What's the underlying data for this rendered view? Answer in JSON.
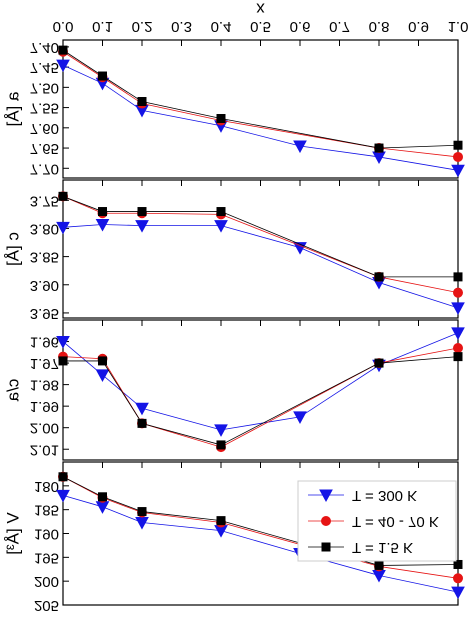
{
  "chart_data": [
    {
      "type": "line",
      "ylabel": "V [Å³]",
      "ylim": [
        175,
        205
      ],
      "yticks": [
        180,
        185,
        190,
        195,
        200,
        205
      ],
      "xlim": [
        0,
        1
      ],
      "legend": "lower right",
      "series": [
        {
          "name": "T = 300 K",
          "color": "#1414e6",
          "marker": "triangle",
          "x": [
            0,
            0.1,
            0.2,
            0.4,
            0.6,
            0.8,
            1.0
          ],
          "values": [
            182,
            184.4,
            187.7,
            189.4,
            194.2,
            198.8,
            202.3
          ]
        },
        {
          "name": "T = 40 - 70 K",
          "color": "#e61414",
          "marker": "circle",
          "x": [
            0,
            0.1,
            0.2,
            0.4,
            0.8,
            1.0
          ],
          "values": [
            178.1,
            182.5,
            185.6,
            187.7,
            196.9,
            199.4
          ]
        },
        {
          "name": "T = 1.5 K",
          "color": "#000000",
          "marker": "square",
          "x": [
            0,
            0.1,
            0.2,
            0.4,
            0.8,
            1.0
          ],
          "values": [
            178.1,
            182.3,
            185.4,
            187.3,
            196.7,
            196.5
          ]
        }
      ]
    },
    {
      "type": "line",
      "ylabel": "c/a",
      "ylim": [
        1.95,
        2.015
      ],
      "yticks": [
        1.96,
        1.97,
        1.98,
        1.99,
        {
          "value": 2.0,
          "label": "2.00"
        },
        2.01
      ],
      "xlim": [
        0,
        1
      ],
      "series": [
        {
          "color": "#1414e6",
          "marker": "triangle",
          "x": [
            0,
            0.1,
            0.2,
            0.4,
            0.6,
            0.8,
            1.0
          ],
          "values": [
            1.96,
            1.9755,
            1.991,
            2.001,
            1.995,
            1.971,
            1.956
          ]
        },
        {
          "color": "#e61414",
          "marker": "circle",
          "x": [
            0,
            0.1,
            0.2,
            0.4,
            0.8,
            1.0
          ],
          "values": [
            1.967,
            1.968,
            1.998,
            2.009,
            1.97,
            1.963
          ]
        },
        {
          "color": "#000000",
          "marker": "square",
          "x": [
            0,
            0.1,
            0.2,
            0.4,
            0.8,
            1.0
          ],
          "values": [
            1.969,
            1.969,
            1.998,
            2.008,
            1.97,
            1.967
          ]
        }
      ]
    },
    {
      "type": "line",
      "ylabel": "c [Å]",
      "ylim": [
        3.714,
        3.959
      ],
      "yticks": [
        3.75,
        {
          "value": 3.8,
          "label": "3.80"
        },
        3.85,
        {
          "value": 3.9,
          "label": "3.90"
        },
        3.95
      ],
      "xlim": [
        0,
        1
      ],
      "series": [
        {
          "color": "#1414e6",
          "marker": "triangle",
          "x": [
            0,
            0.1,
            0.2,
            0.4,
            0.6,
            0.8,
            1.0
          ],
          "values": [
            3.798,
            3.793,
            3.795,
            3.795,
            3.834,
            3.896,
            3.941
          ]
        },
        {
          "color": "#e61414",
          "marker": "circle",
          "x": [
            0,
            0.1,
            0.2,
            0.4,
            0.8,
            1.0
          ],
          "values": [
            3.743,
            3.773,
            3.773,
            3.775,
            3.886,
            3.914
          ]
        },
        {
          "color": "#000000",
          "marker": "square",
          "x": [
            0,
            0.1,
            0.2,
            0.4,
            0.8,
            1.0
          ],
          "values": [
            3.743,
            3.77,
            3.77,
            3.77,
            3.886,
            3.886
          ]
        }
      ]
    },
    {
      "type": "line",
      "ylabel": "a [Å]",
      "xlabel": "x",
      "ylim": [
        7.383,
        7.724
      ],
      "yticks": [
        {
          "value": 7.4,
          "label": "7.40"
        },
        7.45,
        {
          "value": 7.5,
          "label": "7.50"
        },
        7.55,
        {
          "value": 7.6,
          "label": "7.60"
        },
        7.65,
        {
          "value": 7.7,
          "label": "7.70"
        }
      ],
      "xlim": [
        0,
        1
      ],
      "xticks": [
        {
          "value": 0,
          "label": "0.0"
        },
        0.1,
        0.2,
        0.3,
        0.4,
        0.5,
        0.6,
        0.7,
        0.8,
        0.9,
        {
          "value": 1,
          "label": "1.0"
        }
      ],
      "series": [
        {
          "color": "#1414e6",
          "marker": "triangle",
          "x": [
            0,
            0.1,
            0.2,
            0.4,
            0.6,
            0.8,
            1.0
          ],
          "values": [
            7.445,
            7.49,
            7.557,
            7.595,
            7.645,
            7.672,
            7.705
          ]
        },
        {
          "color": "#e61414",
          "marker": "circle",
          "x": [
            0,
            0.1,
            0.2,
            0.4,
            0.8,
            1.0
          ],
          "values": [
            7.412,
            7.475,
            7.54,
            7.582,
            7.65,
            7.672
          ]
        },
        {
          "color": "#000000",
          "marker": "square",
          "x": [
            0,
            0.1,
            0.2,
            0.4,
            0.8,
            1.0
          ],
          "values": [
            7.408,
            7.472,
            7.535,
            7.577,
            7.65,
            7.643
          ]
        }
      ]
    }
  ]
}
